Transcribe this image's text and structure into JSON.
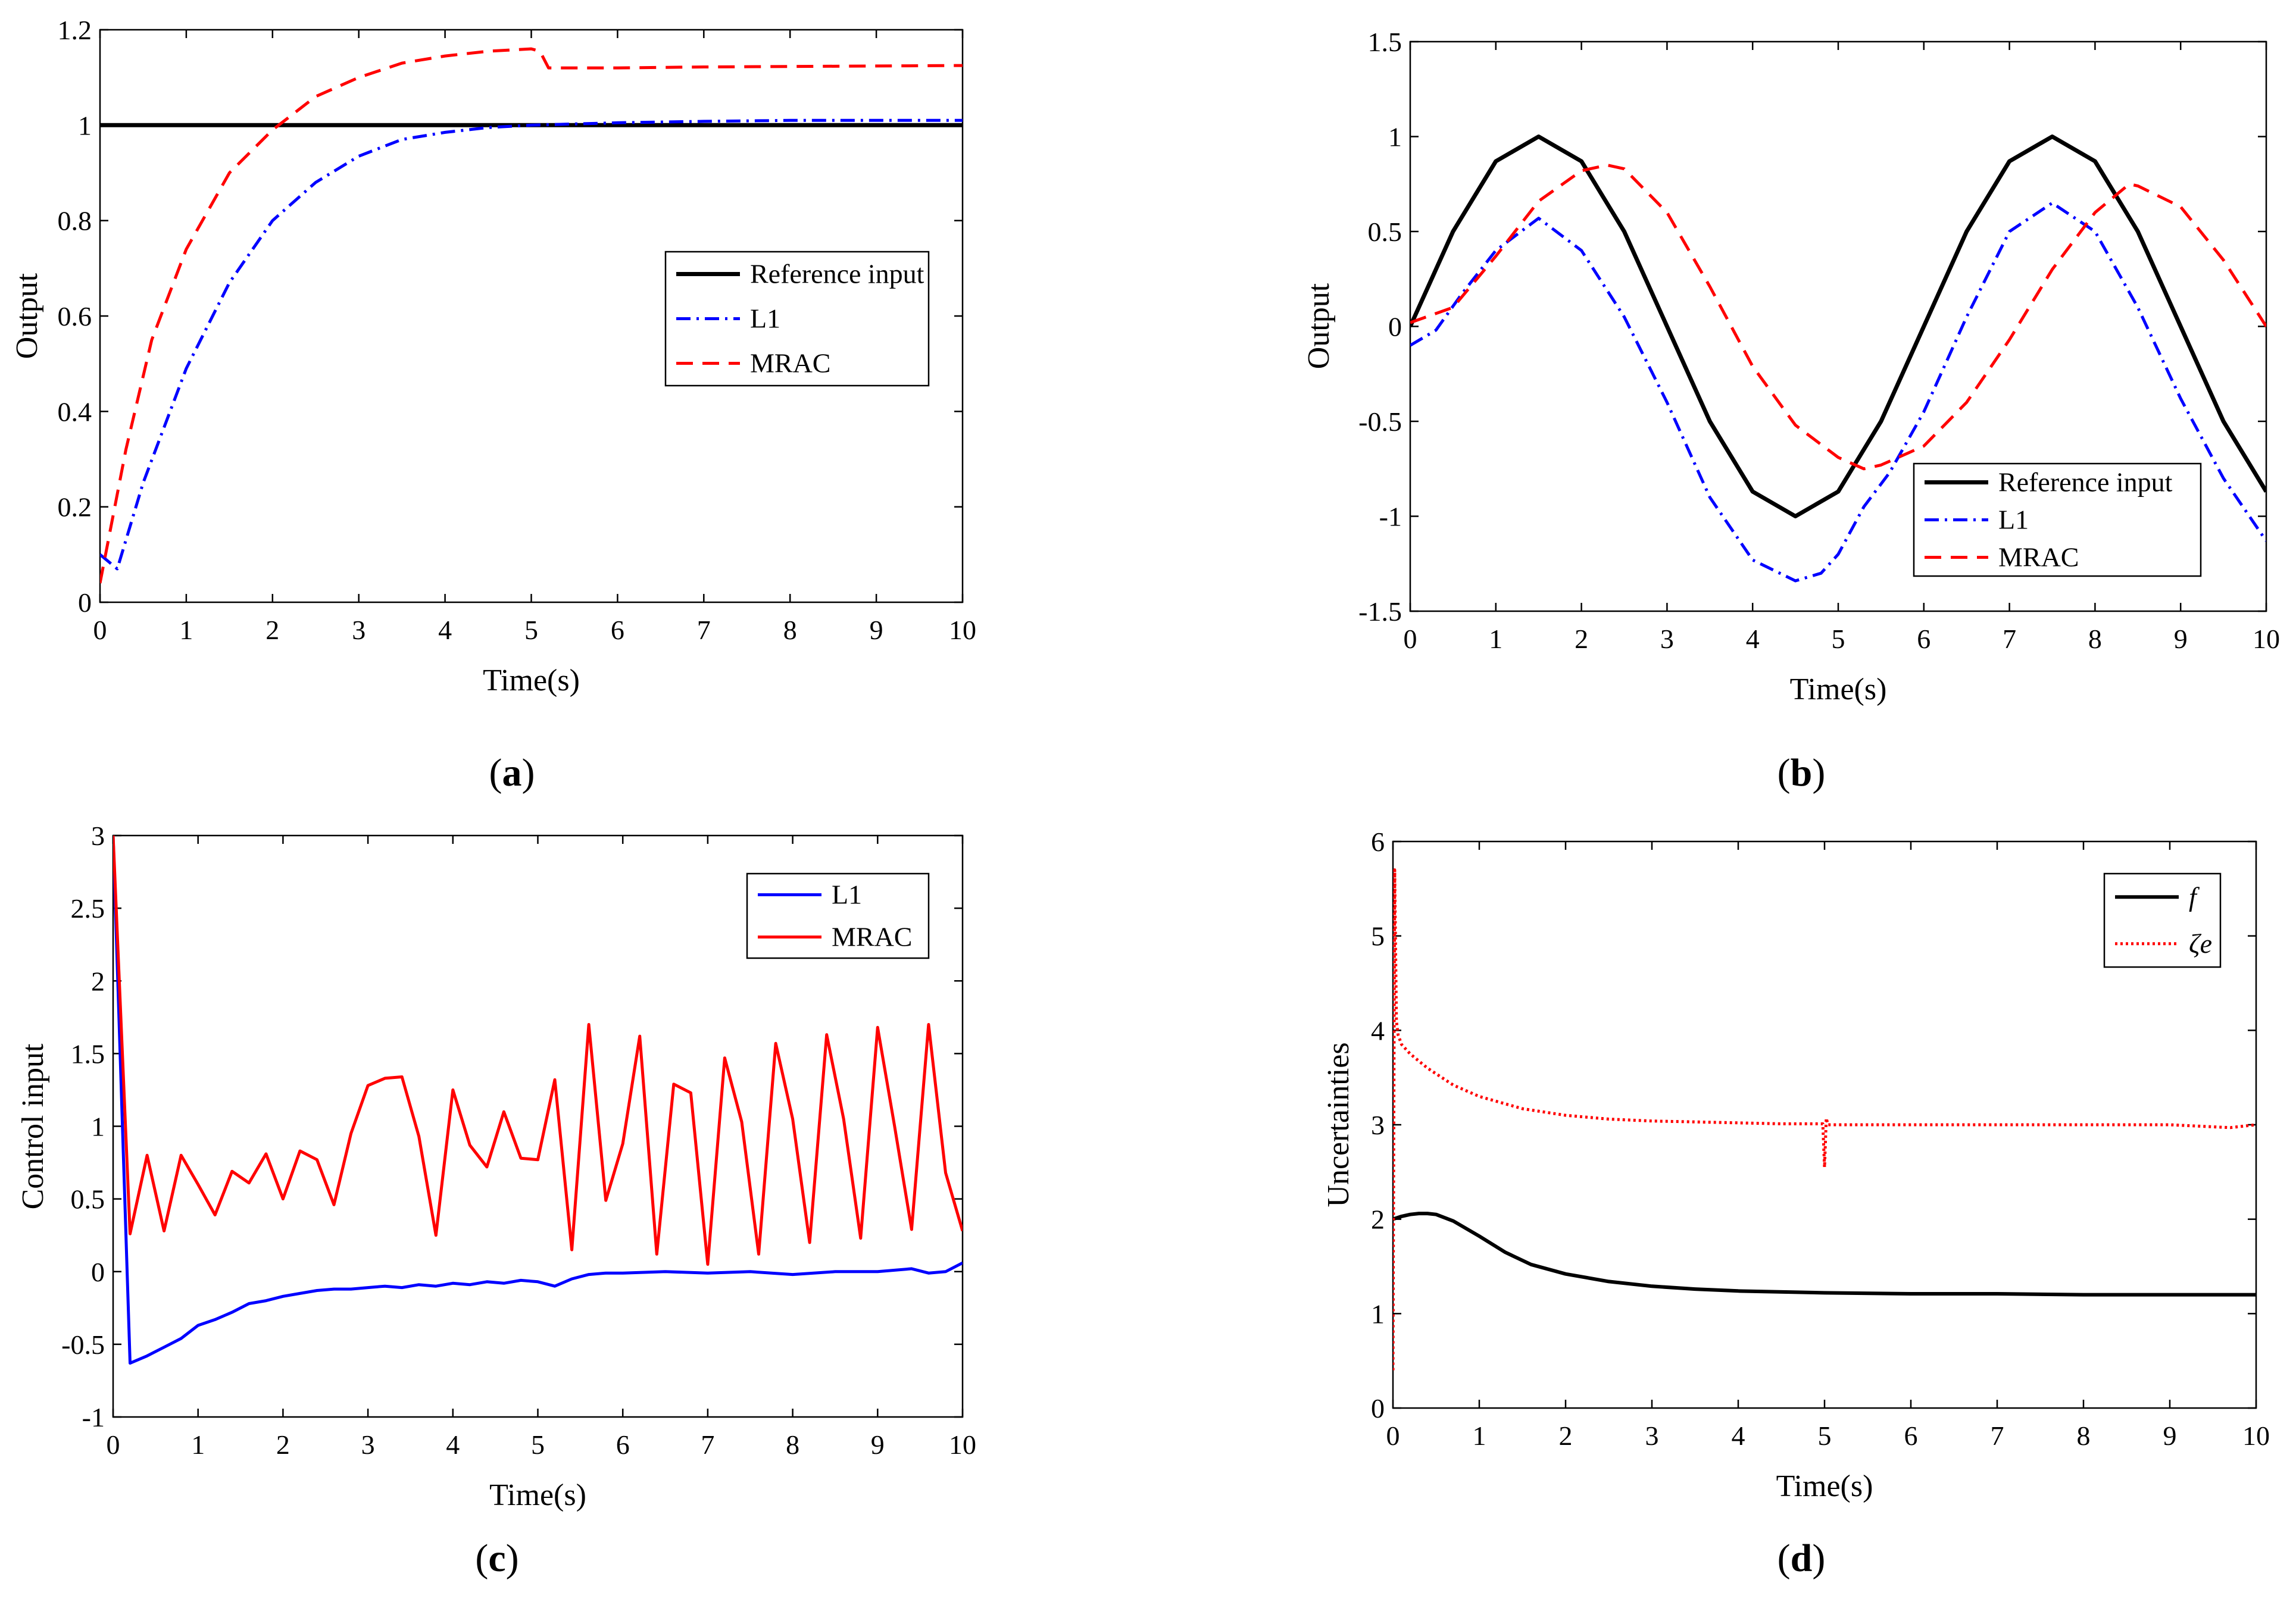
{
  "colors": {
    "reference": "#000000",
    "l1": "#0000ff",
    "mrac": "#ff0000",
    "f": "#000000",
    "zeta": "#ff0000"
  },
  "chart_data": [
    {
      "id": "a",
      "type": "line",
      "caption_open": "(",
      "caption_letter": "a",
      "caption_close": ")",
      "xlabel": "Time(s)",
      "ylabel": "Output",
      "xlim": [
        0,
        10
      ],
      "ylim": [
        0,
        1.2
      ],
      "xticks": [
        0,
        1,
        2,
        3,
        4,
        5,
        6,
        7,
        8,
        9,
        10
      ],
      "xtick_labels": [
        "0",
        "1",
        "2",
        "3",
        "4",
        "5",
        "6",
        "7",
        "8",
        "9",
        "10"
      ],
      "yticks": [
        0,
        0.2,
        0.4,
        0.6,
        0.8,
        1,
        1.2
      ],
      "ytick_labels": [
        "0",
        "0.2",
        "0.4",
        "0.6",
        "0.8",
        "1",
        "1.2"
      ],
      "legend": {
        "position": "center-right",
        "entries": [
          {
            "label": "Reference input",
            "series": "reference"
          },
          {
            "label": "L1",
            "series": "l1"
          },
          {
            "label": "MRAC",
            "series": "mrac"
          }
        ]
      },
      "series": [
        {
          "name": "Reference input",
          "key": "reference",
          "style": "solid",
          "x": [
            0,
            10
          ],
          "y": [
            1,
            1
          ]
        },
        {
          "name": "L1",
          "key": "l1",
          "style": "dashdot",
          "x": [
            0,
            0.2,
            0.5,
            1,
            1.5,
            2,
            2.5,
            3,
            3.5,
            4,
            4.5,
            5,
            6,
            7,
            8,
            9,
            10
          ],
          "y": [
            0.1,
            0.07,
            0.25,
            0.49,
            0.67,
            0.8,
            0.88,
            0.935,
            0.97,
            0.985,
            0.995,
            1.0,
            1.005,
            1.008,
            1.01,
            1.01,
            1.01
          ]
        },
        {
          "name": "MRAC",
          "key": "mrac",
          "style": "dashed",
          "x": [
            0,
            0.3,
            0.6,
            1,
            1.5,
            2,
            2.5,
            3,
            3.5,
            4,
            4.5,
            5,
            5.1,
            5.2,
            6,
            7,
            8,
            9,
            10
          ],
          "y": [
            0.04,
            0.32,
            0.55,
            0.74,
            0.9,
            0.99,
            1.06,
            1.1,
            1.13,
            1.145,
            1.155,
            1.16,
            1.155,
            1.12,
            1.12,
            1.122,
            1.123,
            1.124,
            1.125
          ]
        }
      ]
    },
    {
      "id": "b",
      "type": "line",
      "caption_open": "(",
      "caption_letter": "b",
      "caption_close": ")",
      "xlabel": "Time(s)",
      "ylabel": "Output",
      "xlim": [
        0,
        10
      ],
      "ylim": [
        -1.5,
        1.5
      ],
      "xticks": [
        0,
        1,
        2,
        3,
        4,
        5,
        6,
        7,
        8,
        9,
        10
      ],
      "xtick_labels": [
        "0",
        "1",
        "2",
        "3",
        "4",
        "5",
        "6",
        "7",
        "8",
        "9",
        "10"
      ],
      "yticks": [
        -1.5,
        -1,
        -0.5,
        0,
        0.5,
        1,
        1.5
      ],
      "ytick_labels": [
        "-1.5",
        "-1",
        "-0.5",
        "0",
        "0.5",
        "1",
        "1.5"
      ],
      "legend": {
        "position": "bottom-right",
        "entries": [
          {
            "label": "Reference input",
            "series": "reference"
          },
          {
            "label": "L1",
            "series": "l1"
          },
          {
            "label": "MRAC",
            "series": "mrac"
          }
        ]
      },
      "series": [
        {
          "name": "Reference input",
          "key": "reference",
          "style": "solid",
          "x": [
            0,
            0.5,
            1,
            1.5,
            2,
            2.5,
            3,
            3.5,
            4,
            4.5,
            5,
            5.5,
            6,
            6.5,
            7,
            7.5,
            8,
            8.5,
            9,
            9.5,
            10
          ],
          "y": [
            0,
            0.5,
            0.87,
            1.0,
            0.87,
            0.5,
            0.0,
            -0.5,
            -0.87,
            -1.0,
            -0.87,
            -0.5,
            0.0,
            0.5,
            0.87,
            1.0,
            0.87,
            0.5,
            0.0,
            -0.5,
            -0.87
          ]
        },
        {
          "name": "L1",
          "key": "l1",
          "style": "dashdot",
          "x": [
            0,
            0.3,
            0.6,
            1,
            1.5,
            2,
            2.5,
            3,
            3.5,
            4,
            4.5,
            4.8,
            5,
            5.3,
            5.6,
            6,
            6.5,
            7,
            7.5,
            8,
            8.5,
            9,
            9.5,
            10
          ],
          "y": [
            -0.1,
            -0.02,
            0.17,
            0.4,
            0.57,
            0.4,
            0.05,
            -0.4,
            -0.9,
            -1.23,
            -1.34,
            -1.3,
            -1.2,
            -0.95,
            -0.77,
            -0.45,
            0.05,
            0.5,
            0.65,
            0.5,
            0.1,
            -0.38,
            -0.8,
            -1.13
          ]
        },
        {
          "name": "MRAC",
          "key": "mrac",
          "style": "dashed",
          "x": [
            0,
            0.5,
            1,
            1.5,
            2,
            2.3,
            2.5,
            3,
            3.5,
            4,
            4.5,
            5,
            5.3,
            5.5,
            6,
            6.5,
            7,
            7.5,
            8,
            8.4,
            8.5,
            9,
            9.5,
            10
          ],
          "y": [
            0.02,
            0.1,
            0.37,
            0.66,
            0.82,
            0.85,
            0.83,
            0.6,
            0.21,
            -0.21,
            -0.52,
            -0.69,
            -0.75,
            -0.73,
            -0.63,
            -0.4,
            -0.07,
            0.3,
            0.6,
            0.75,
            0.74,
            0.63,
            0.35,
            0.0
          ]
        }
      ]
    },
    {
      "id": "c",
      "type": "line",
      "caption_open": "(",
      "caption_letter": "c",
      "caption_close": ")",
      "xlabel": "Time(s)",
      "ylabel": "Control input",
      "xlim": [
        0,
        10
      ],
      "ylim": [
        -1,
        3
      ],
      "xticks": [
        0,
        1,
        2,
        3,
        4,
        5,
        6,
        7,
        8,
        9,
        10
      ],
      "xtick_labels": [
        "0",
        "1",
        "2",
        "3",
        "4",
        "5",
        "6",
        "7",
        "8",
        "9",
        "10"
      ],
      "yticks": [
        -1,
        -0.5,
        0,
        0.5,
        1,
        1.5,
        2,
        2.5,
        3
      ],
      "ytick_labels": [
        "-1",
        "-0.5",
        "0",
        "0.5",
        "1",
        "1.5",
        "2",
        "2.5",
        "3"
      ],
      "legend": {
        "position": "top-right",
        "entries": [
          {
            "label": "L1",
            "series": "l1"
          },
          {
            "label": "MRAC",
            "series": "mrac"
          }
        ]
      },
      "series": [
        {
          "name": "L1",
          "key": "l1",
          "style": "solid",
          "x": [
            0,
            0.2,
            0.4,
            0.6,
            0.8,
            1.0,
            1.2,
            1.4,
            1.6,
            1.8,
            2.0,
            2.2,
            2.4,
            2.6,
            2.8,
            3.0,
            3.2,
            3.4,
            3.6,
            3.8,
            4.0,
            4.2,
            4.4,
            4.6,
            4.8,
            5.0,
            5.2,
            5.4,
            5.6,
            5.8,
            6.0,
            6.5,
            7.0,
            7.5,
            8.0,
            8.5,
            9.0,
            9.4,
            9.6,
            9.8,
            10.0
          ],
          "y": [
            3.0,
            -0.63,
            -0.58,
            -0.52,
            -0.46,
            -0.37,
            -0.33,
            -0.28,
            -0.22,
            -0.2,
            -0.17,
            -0.15,
            -0.13,
            -0.12,
            -0.12,
            -0.11,
            -0.1,
            -0.11,
            -0.09,
            -0.1,
            -0.08,
            -0.09,
            -0.07,
            -0.08,
            -0.06,
            -0.07,
            -0.1,
            -0.05,
            -0.02,
            -0.01,
            -0.01,
            0.0,
            -0.01,
            0.0,
            -0.02,
            0.0,
            0.0,
            0.02,
            -0.01,
            0.0,
            0.06
          ]
        },
        {
          "name": "MRAC",
          "key": "mrac",
          "style": "solid",
          "x": [
            0,
            0.2,
            0.4,
            0.6,
            0.8,
            1.0,
            1.2,
            1.4,
            1.6,
            1.8,
            2.0,
            2.2,
            2.4,
            2.6,
            2.8,
            3.0,
            3.2,
            3.4,
            3.6,
            3.8,
            4.0,
            4.2,
            4.4,
            4.6,
            4.8,
            5.0,
            5.2,
            5.4,
            5.6,
            5.8,
            6.0,
            6.2,
            6.4,
            6.6,
            6.8,
            7.0,
            7.2,
            7.4,
            7.6,
            7.8,
            8.0,
            8.2,
            8.4,
            8.6,
            8.8,
            9.0,
            9.2,
            9.4,
            9.6,
            9.8,
            10.0
          ],
          "y": [
            3.0,
            0.26,
            0.8,
            0.28,
            0.8,
            0.6,
            0.39,
            0.69,
            0.61,
            0.81,
            0.5,
            0.83,
            0.77,
            0.46,
            0.95,
            1.28,
            1.33,
            1.34,
            0.93,
            0.25,
            1.25,
            0.87,
            0.72,
            1.1,
            0.78,
            0.77,
            1.32,
            0.15,
            1.7,
            0.49,
            0.88,
            1.62,
            0.12,
            1.29,
            1.23,
            0.05,
            1.47,
            1.03,
            0.12,
            1.57,
            1.05,
            0.2,
            1.63,
            1.05,
            0.23,
            1.68,
            1.0,
            0.29,
            1.7,
            0.68,
            0.28
          ]
        }
      ]
    },
    {
      "id": "d",
      "type": "line",
      "caption_open": "(",
      "caption_letter": "d",
      "caption_close": ")",
      "xlabel": "Time(s)",
      "ylabel": "Uncertainties",
      "xlim": [
        0,
        10
      ],
      "ylim": [
        0,
        6
      ],
      "xticks": [
        0,
        1,
        2,
        3,
        4,
        5,
        6,
        7,
        8,
        9,
        10
      ],
      "xtick_labels": [
        "0",
        "1",
        "2",
        "3",
        "4",
        "5",
        "6",
        "7",
        "8",
        "9",
        "10"
      ],
      "yticks": [
        0,
        1,
        2,
        3,
        4,
        5,
        6
      ],
      "ytick_labels": [
        "0",
        "1",
        "2",
        "3",
        "4",
        "5",
        "6"
      ],
      "legend": {
        "position": "top-right",
        "entries": [
          {
            "label": "f",
            "series": "f"
          },
          {
            "label": "ζe",
            "series": "zeta"
          }
        ]
      },
      "series": [
        {
          "name": "f",
          "key": "f",
          "style": "solid",
          "x": [
            0,
            0.1,
            0.2,
            0.3,
            0.4,
            0.5,
            0.7,
            1.0,
            1.3,
            1.6,
            2.0,
            2.5,
            3.0,
            3.5,
            4.0,
            5.0,
            6.0,
            7.0,
            8.0,
            9.0,
            10.0
          ],
          "y": [
            2.0,
            2.03,
            2.05,
            2.06,
            2.06,
            2.05,
            1.98,
            1.82,
            1.65,
            1.52,
            1.42,
            1.34,
            1.29,
            1.26,
            1.24,
            1.22,
            1.21,
            1.21,
            1.2,
            1.2,
            1.2
          ]
        },
        {
          "name": "ζe",
          "key": "zeta",
          "style": "dotted",
          "x": [
            0,
            0.02,
            0.04,
            0.06,
            0.1,
            0.2,
            0.4,
            0.7,
            1.0,
            1.5,
            2.0,
            2.5,
            3.0,
            3.5,
            4.0,
            4.5,
            4.98,
            5.0,
            5.02,
            5.04,
            5.5,
            6.0,
            7.0,
            8.0,
            9.0,
            9.7,
            10.0
          ],
          "y": [
            0.4,
            5.7,
            4.1,
            3.95,
            3.85,
            3.75,
            3.6,
            3.42,
            3.3,
            3.17,
            3.1,
            3.06,
            3.04,
            3.03,
            3.02,
            3.01,
            3.01,
            2.55,
            3.07,
            3.0,
            3.0,
            3.0,
            3.0,
            3.0,
            3.0,
            2.97,
            3.0
          ]
        }
      ]
    }
  ]
}
